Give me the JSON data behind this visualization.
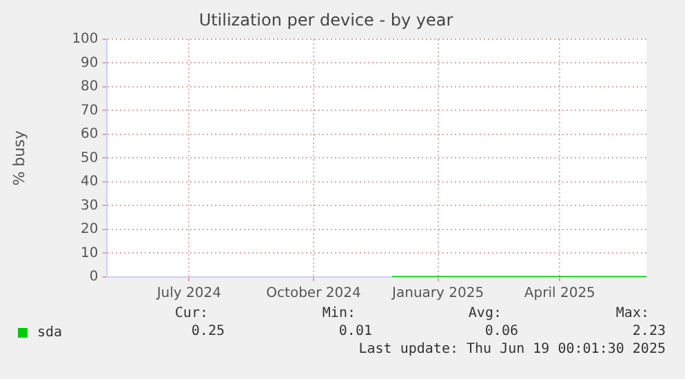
{
  "chart_data": {
    "type": "line",
    "title": "Utilization per device - by year",
    "ylabel": "% busy",
    "xlim": [
      "2024-05-16",
      "2025-06-19"
    ],
    "xticks": [
      {
        "value": "2024-07-16",
        "label": "July 2024"
      },
      {
        "value": "2024-10-16",
        "label": "October 2024"
      },
      {
        "value": "2025-01-16",
        "label": "January 2025"
      },
      {
        "value": "2025-04-16",
        "label": "April 2025"
      }
    ],
    "ylim": [
      0,
      100
    ],
    "yticks": [
      0,
      10,
      20,
      30,
      40,
      50,
      60,
      70,
      80,
      90,
      100
    ],
    "grid": true,
    "legend": "bottom",
    "marker": "none",
    "series": [
      {
        "name": "sda",
        "color": "#00cc00",
        "x": [
          "2024-12-13",
          "2025-01-15",
          "2025-02-15",
          "2025-03-15",
          "2025-04-15",
          "2025-05-15",
          "2025-06-19"
        ],
        "values": [
          0,
          0,
          0,
          0,
          0,
          0,
          0
        ]
      }
    ],
    "annotations": [
      "Cur:",
      "Min:",
      "Avg:",
      "Max:",
      "0.25",
      "0.01",
      "0.06",
      "2.23",
      "Last update: Thu Jun 19 00:01:30 2025"
    ]
  }
}
